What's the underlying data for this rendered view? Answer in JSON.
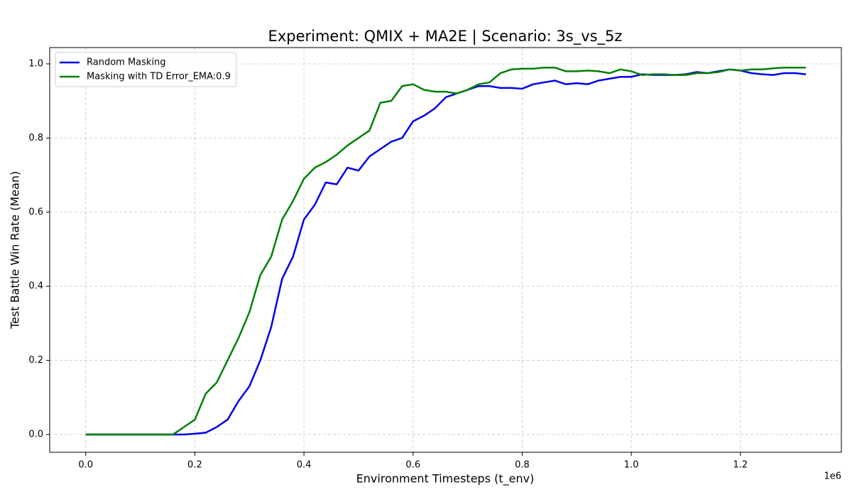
{
  "chart_data": {
    "type": "line",
    "title": "Experiment: QMIX + MA2E | Scenario: 3s_vs_5z",
    "x_label": "Environment Timesteps (t_env)",
    "y_label": "Test Battle Win Rate (Mean)",
    "x_offset_label": "1e6",
    "x": [
      0,
      0.02,
      0.04,
      0.06,
      0.08,
      0.1,
      0.12,
      0.14,
      0.16,
      0.18,
      0.2,
      0.22,
      0.24,
      0.26,
      0.28,
      0.3,
      0.32,
      0.34,
      0.36,
      0.38,
      0.4,
      0.42,
      0.44,
      0.46,
      0.48,
      0.5,
      0.52,
      0.54,
      0.56,
      0.58,
      0.6,
      0.62,
      0.64,
      0.66,
      0.68,
      0.7,
      0.72,
      0.74,
      0.76,
      0.78,
      0.8,
      0.82,
      0.84,
      0.86,
      0.88,
      0.9,
      0.92,
      0.94,
      0.96,
      0.98,
      1.0,
      1.02,
      1.04,
      1.06,
      1.08,
      1.1,
      1.12,
      1.14,
      1.16,
      1.18,
      1.2,
      1.22,
      1.24,
      1.26,
      1.28,
      1.3,
      1.32
    ],
    "series": [
      {
        "name": "Random Masking",
        "color": "#0000ee",
        "values": [
          0,
          0,
          0,
          0,
          0,
          0,
          0,
          0,
          0,
          0,
          0.002,
          0.005,
          0.02,
          0.04,
          0.09,
          0.13,
          0.2,
          0.29,
          0.42,
          0.48,
          0.58,
          0.62,
          0.68,
          0.675,
          0.72,
          0.712,
          0.75,
          0.77,
          0.79,
          0.8,
          0.845,
          0.86,
          0.88,
          0.91,
          0.92,
          0.93,
          0.94,
          0.94,
          0.935,
          0.935,
          0.933,
          0.945,
          0.95,
          0.955,
          0.945,
          0.948,
          0.945,
          0.955,
          0.96,
          0.965,
          0.965,
          0.972,
          0.97,
          0.97,
          0.97,
          0.972,
          0.978,
          0.975,
          0.98,
          0.985,
          0.982,
          0.975,
          0.972,
          0.97,
          0.975,
          0.975,
          0.972
        ]
      },
      {
        "name": "Masking with TD Error_EMA:0.9",
        "color": "#008000",
        "values": [
          0,
          0,
          0,
          0,
          0,
          0,
          0,
          0,
          0,
          0.02,
          0.04,
          0.11,
          0.14,
          0.2,
          0.26,
          0.33,
          0.43,
          0.48,
          0.58,
          0.63,
          0.69,
          0.72,
          0.735,
          0.755,
          0.78,
          0.8,
          0.82,
          0.895,
          0.9,
          0.94,
          0.945,
          0.93,
          0.925,
          0.925,
          0.92,
          0.93,
          0.945,
          0.95,
          0.975,
          0.985,
          0.987,
          0.987,
          0.99,
          0.99,
          0.98,
          0.98,
          0.982,
          0.98,
          0.975,
          0.985,
          0.98,
          0.97,
          0.972,
          0.972,
          0.97,
          0.97,
          0.975,
          0.975,
          0.978,
          0.985,
          0.982,
          0.985,
          0.985,
          0.988,
          0.99,
          0.99,
          0.99
        ]
      }
    ],
    "xlim": [
      -0.066,
      1.385
    ],
    "ylim": [
      -0.048,
      1.044
    ],
    "xticks": [
      {
        "value": 0,
        "label": "0.0"
      },
      0.2,
      0.4,
      0.6,
      0.8,
      {
        "value": 1,
        "label": "1.0"
      },
      1.2
    ],
    "yticks": [
      {
        "value": 0,
        "label": "0.0"
      },
      0.2,
      0.4,
      0.6,
      0.8,
      {
        "value": 1,
        "label": "1.0"
      }
    ],
    "grid": true,
    "legend": "upper-left"
  }
}
